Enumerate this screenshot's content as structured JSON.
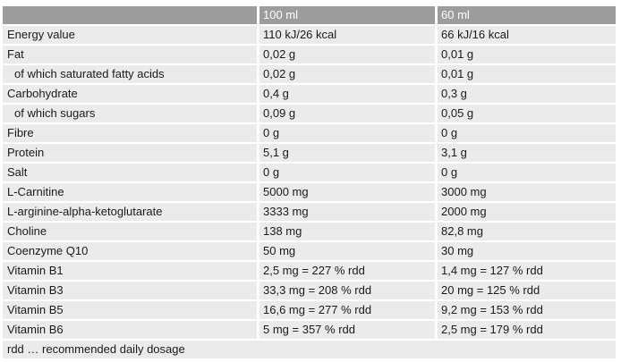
{
  "table": {
    "columns": [
      "",
      "100 ml",
      "60 ml"
    ],
    "rows": [
      {
        "label": "Energy value",
        "indent": false,
        "per_100ml": "110 kJ/26 kcal",
        "per_60ml": "66 kJ/16 kcal"
      },
      {
        "label": "Fat",
        "indent": false,
        "per_100ml": "0,02 g",
        "per_60ml": "0,01 g"
      },
      {
        "label": "of which saturated fatty acids",
        "indent": true,
        "per_100ml": "0,02 g",
        "per_60ml": "0,01 g"
      },
      {
        "label": "Carbohydrate",
        "indent": false,
        "per_100ml": "0,4 g",
        "per_60ml": "0,3 g"
      },
      {
        "label": "of which sugars",
        "indent": true,
        "per_100ml": "0,09 g",
        "per_60ml": "0,05 g"
      },
      {
        "label": "Fibre",
        "indent": false,
        "per_100ml": "0 g",
        "per_60ml": "0 g"
      },
      {
        "label": "Protein",
        "indent": false,
        "per_100ml": "5,1 g",
        "per_60ml": "3,1 g"
      },
      {
        "label": "Salt",
        "indent": false,
        "per_100ml": "0 g",
        "per_60ml": "0 g"
      },
      {
        "label": "L-Carnitine",
        "indent": false,
        "per_100ml": "5000 mg",
        "per_60ml": "3000 mg"
      },
      {
        "label": "L-arginine-alpha-ketoglutarate",
        "indent": false,
        "per_100ml": "3333 mg",
        "per_60ml": "2000 mg"
      },
      {
        "label": "Choline",
        "indent": false,
        "per_100ml": "138 mg",
        "per_60ml": "82,8 mg"
      },
      {
        "label": "Coenzyme Q10",
        "indent": false,
        "per_100ml": "50 mg",
        "per_60ml": "30 mg"
      },
      {
        "label": "Vitamin B1",
        "indent": false,
        "per_100ml": "2,5 mg = 227 % rdd",
        "per_60ml": "1,4 mg = 127 % rdd"
      },
      {
        "label": "Vitamin B3",
        "indent": false,
        "per_100ml": "33,3 mg = 208 % rdd",
        "per_60ml": "20 mg = 125 % rdd"
      },
      {
        "label": "Vitamin B5",
        "indent": false,
        "per_100ml": "16,6 mg = 277 % rdd",
        "per_60ml": "9,2 mg = 153 % rdd"
      },
      {
        "label": "Vitamin B6",
        "indent": false,
        "per_100ml": "5 mg = 357 % rdd",
        "per_60ml": "2,5 mg = 179 % rdd"
      }
    ],
    "footnote": "rdd … recommended daily dosage"
  },
  "colors": {
    "header_background": "#9c9c9c",
    "header_text": "#ffffff",
    "row_background": "#ebebeb",
    "body_text": "#1a1a1a",
    "page_background": "#ffffff"
  }
}
